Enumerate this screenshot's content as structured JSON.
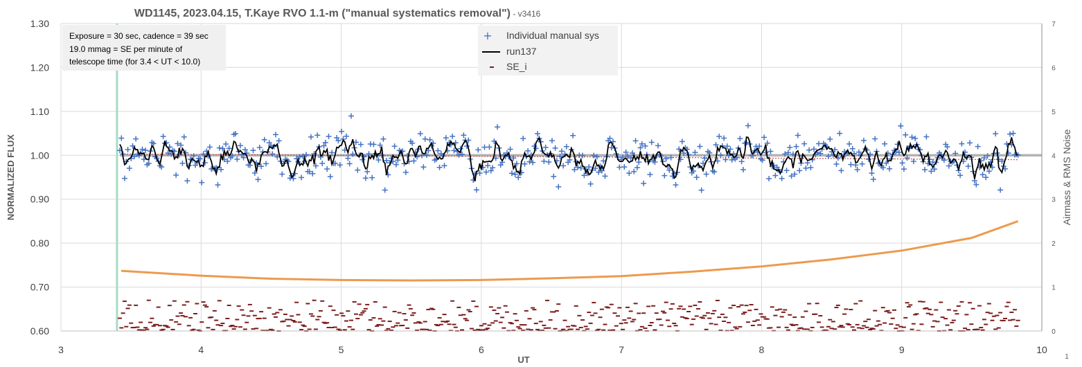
{
  "chart_data": {
    "type": "scatter",
    "title": "WD1145, 2023.04.15, T.Kaye RVO 1.1-m (\"manual systematics removal\")",
    "subtitle": " - v3416",
    "xlabel": "UT",
    "ylabel": "NORMALIZED FLUX",
    "y2label": "Airmass & RMS Noise",
    "corner_label": "1",
    "xlim": [
      3,
      10
    ],
    "ylim": [
      0.6,
      1.3
    ],
    "y2lim": [
      0,
      7
    ],
    "x_ticks": [
      "3",
      "4",
      "5",
      "6",
      "7",
      "8",
      "9",
      "10"
    ],
    "y_ticks": [
      "0.60",
      "0.70",
      "0.80",
      "0.90",
      "1.00",
      "1.10",
      "1.20",
      "1.30"
    ],
    "y2_ticks": [
      "0",
      "1",
      "2",
      "3",
      "4",
      "5",
      "6",
      "7"
    ],
    "grid": true,
    "legend_position": "top-center",
    "annotation_lines": [
      "Exposure = 30 sec, cadence = 39 sec",
      "19.0 mmag = SE per minute of",
      "telescope time  (for 3.4 < UT < 10.0)"
    ],
    "vertical_marker_ut": 3.4,
    "reference_level": 1.0,
    "series": [
      {
        "name": "Individual manual sys",
        "marker": "+",
        "color": "#4472C4",
        "x_range": [
          3.42,
          9.83
        ],
        "n_points": 560,
        "mean": 0.995,
        "scatter_sd": 0.03
      },
      {
        "name": "run137",
        "style": "line",
        "color": "#000000",
        "smoothing_points": 3
      },
      {
        "name": "SE_i",
        "marker": "dash",
        "color": "#7B1C1C",
        "axis": "secondary",
        "typical_range": [
          0.0,
          0.7
        ]
      },
      {
        "name": "",
        "style": "line",
        "color": "#ED9A4C",
        "axis": "secondary",
        "x": [
          3.43,
          4.0,
          4.5,
          5.0,
          5.5,
          6.0,
          6.5,
          7.0,
          7.5,
          8.0,
          8.5,
          9.0,
          9.5,
          9.83
        ],
        "values": [
          1.37,
          1.26,
          1.19,
          1.16,
          1.15,
          1.16,
          1.2,
          1.25,
          1.35,
          1.47,
          1.63,
          1.83,
          2.12,
          2.5
        ]
      }
    ],
    "trend_line": {
      "color": "#C0504D",
      "style": "dotted",
      "x": [
        3.43,
        9.83
      ],
      "values": [
        1.003,
        0.99
      ]
    }
  }
}
